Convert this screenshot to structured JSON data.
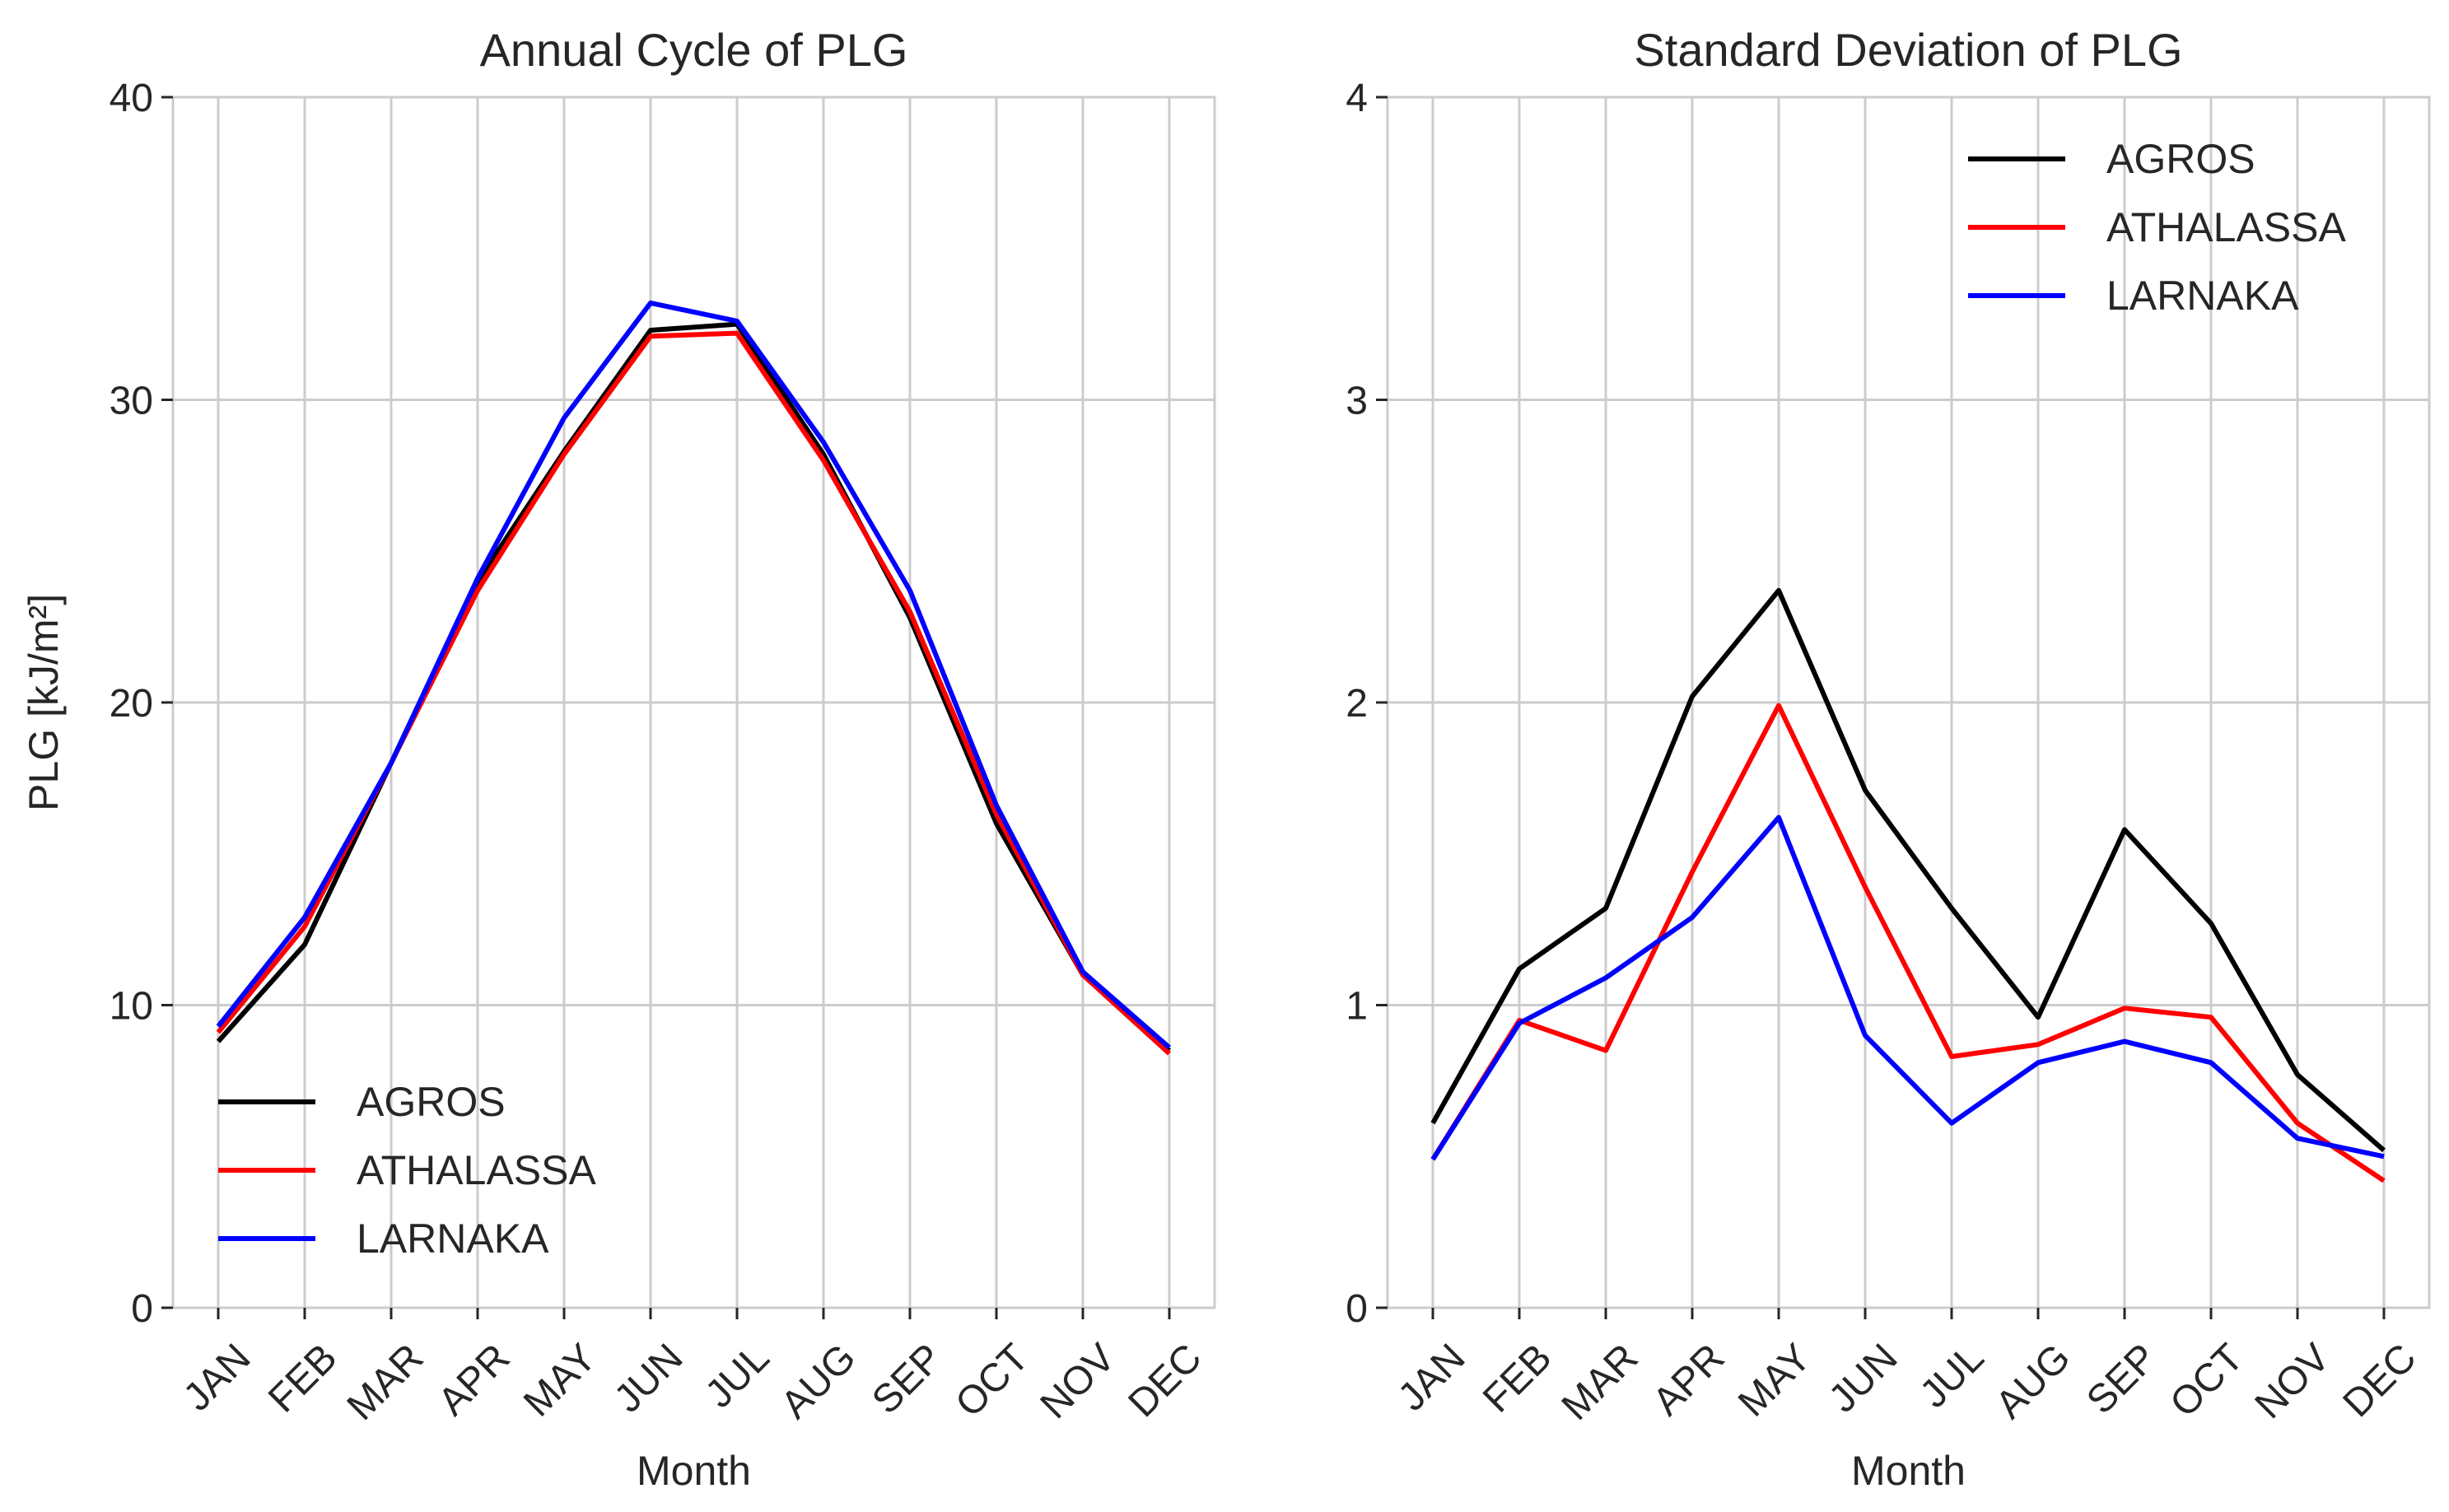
{
  "chart_data": [
    {
      "type": "line",
      "title": "Annual Cycle of PLG",
      "xlabel": "Month",
      "ylabel": "PLG [kJ/m²]",
      "categories": [
        "JAN",
        "FEB",
        "MAR",
        "APR",
        "MAY",
        "JUN",
        "JUL",
        "AUG",
        "SEP",
        "OCT",
        "NOV",
        "DEC"
      ],
      "ylim": [
        0,
        40
      ],
      "yticks": [
        "0",
        "10",
        "20",
        "30",
        "40"
      ],
      "grid": true,
      "legend_position": "lower-left",
      "series": [
        {
          "name": "AGROS",
          "color": "#000000",
          "values": [
            8.8,
            12.0,
            18.0,
            24.0,
            28.3,
            32.3,
            32.5,
            28.2,
            22.8,
            16.0,
            11.0,
            8.5
          ]
        },
        {
          "name": "ATHALASSA",
          "color": "#ff0000",
          "values": [
            9.1,
            12.6,
            18.0,
            23.7,
            28.2,
            32.1,
            32.2,
            28.0,
            23.0,
            16.3,
            11.0,
            8.4
          ]
        },
        {
          "name": "LARNAKA",
          "color": "#0000ff",
          "values": [
            9.3,
            12.9,
            18.0,
            24.1,
            29.4,
            33.2,
            32.6,
            28.6,
            23.7,
            16.6,
            11.1,
            8.6
          ]
        }
      ]
    },
    {
      "type": "line",
      "title": "Standard Deviation of PLG",
      "xlabel": "Month",
      "ylabel": "",
      "categories": [
        "JAN",
        "FEB",
        "MAR",
        "APR",
        "MAY",
        "JUN",
        "JUL",
        "AUG",
        "SEP",
        "OCT",
        "NOV",
        "DEC"
      ],
      "ylim": [
        0,
        4
      ],
      "yticks": [
        "0",
        "1",
        "2",
        "3",
        "4"
      ],
      "grid": true,
      "legend_position": "upper-right",
      "series": [
        {
          "name": "AGROS",
          "color": "#000000",
          "values": [
            0.61,
            1.12,
            1.32,
            2.02,
            2.37,
            1.71,
            1.32,
            0.96,
            1.58,
            1.27,
            0.77,
            0.52
          ]
        },
        {
          "name": "ATHALASSA",
          "color": "#ff0000",
          "values": [
            0.49,
            0.95,
            0.85,
            1.44,
            1.99,
            1.39,
            0.83,
            0.87,
            0.99,
            0.96,
            0.61,
            0.42
          ]
        },
        {
          "name": "LARNAKA",
          "color": "#0000ff",
          "values": [
            0.49,
            0.94,
            1.09,
            1.29,
            1.62,
            0.9,
            0.61,
            0.81,
            0.88,
            0.81,
            0.56,
            0.5
          ]
        }
      ]
    }
  ]
}
